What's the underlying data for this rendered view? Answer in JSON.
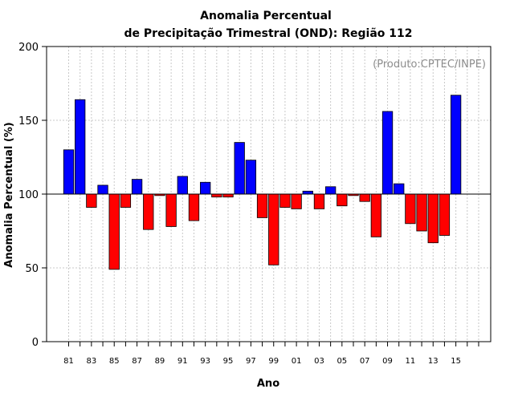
{
  "chart_data": {
    "type": "bar",
    "title_line1": "Anomalia Percentual",
    "title_line2": "de Precipitação Trimestral (OND): Região 112",
    "xlabel": "Ano",
    "ylabel": "Anomalia Percentual (%)",
    "credit": "(Produto:CPTEC/INPE)",
    "ylim": [
      0,
      200
    ],
    "yticks": [
      0,
      50,
      100,
      150,
      200
    ],
    "baseline": 100,
    "grid": true,
    "categories": [
      "81",
      "82",
      "83",
      "84",
      "85",
      "86",
      "87",
      "88",
      "89",
      "90",
      "91",
      "92",
      "93",
      "94",
      "95",
      "96",
      "97",
      "98",
      "99",
      "00",
      "01",
      "02",
      "03",
      "04",
      "05",
      "06",
      "07",
      "08",
      "09",
      "10",
      "11",
      "12",
      "13",
      "14",
      "15"
    ],
    "xtick_labels": [
      "81",
      "83",
      "85",
      "87",
      "89",
      "91",
      "93",
      "95",
      "97",
      "99",
      "01",
      "03",
      "05",
      "07",
      "09",
      "11",
      "13",
      "15"
    ],
    "values": [
      130,
      164,
      91,
      106,
      49,
      91,
      110,
      76,
      99,
      78,
      112,
      82,
      108,
      98,
      98,
      135,
      123,
      84,
      52,
      91,
      90,
      102,
      90,
      105,
      92,
      99,
      95,
      71,
      156,
      107,
      80,
      75,
      67,
      72,
      167
    ],
    "colors": {
      "above": "#0000ff",
      "below": "#ff0000",
      "grid": "#c8c8c8"
    }
  }
}
